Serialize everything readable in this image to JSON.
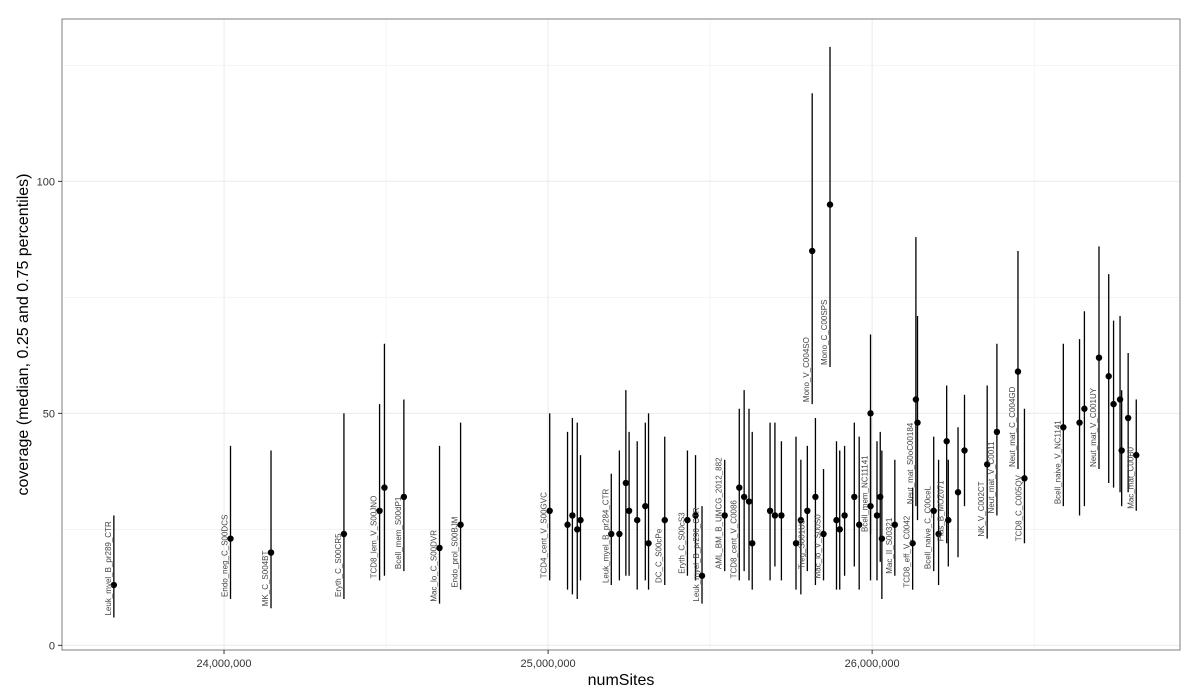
{
  "chart_data": {
    "type": "scatter",
    "subtype": "pointrange",
    "title": "",
    "xlabel": "numSites",
    "ylabel": "coverage (median, 0.25 and 0.75 percentiles)",
    "xlim": [
      23500000,
      26950000
    ],
    "ylim": [
      -1,
      135
    ],
    "x_ticks": [
      24000000,
      25000000,
      26000000
    ],
    "x_tick_labels": [
      "24,000,000",
      "25,000,000",
      "26,000,000"
    ],
    "y_ticks": [
      0,
      50,
      100
    ],
    "y_tick_labels": [
      "0",
      "50",
      "100"
    ],
    "grid": true,
    "colors": {
      "panel_border": "#7f7f7f",
      "grid": "#ebebeb",
      "point": "#000000",
      "label": "#444444"
    },
    "points": [
      {
        "label": "Leuk_myel_B_pr289_CTR",
        "x": 23660000,
        "y": 13,
        "lo": 6,
        "hi": 28
      },
      {
        "label": "Endo_neg_C_S00DCS",
        "x": 24020000,
        "y": 23,
        "lo": 10,
        "hi": 43
      },
      {
        "label": "MK_C_S004BT",
        "x": 24145000,
        "y": 20,
        "lo": 8,
        "hi": 42
      },
      {
        "label": "Eryth_C_S00CR5",
        "x": 24370000,
        "y": 24,
        "lo": 10,
        "hi": 50
      },
      {
        "label": "TCD8_lem_V_S00JNO",
        "x": 24480000,
        "y": 29,
        "lo": 14,
        "hi": 52
      },
      {
        "label": "",
        "x": 24495000,
        "y": 34,
        "lo": 15,
        "hi": 65
      },
      {
        "label": "Bcell_mem_S00dP1",
        "x": 24555000,
        "y": 32,
        "lo": 16,
        "hi": 53
      },
      {
        "label": "Mac_lo_C_S00DVR",
        "x": 24665000,
        "y": 21,
        "lo": 9,
        "hi": 43
      },
      {
        "label": "Endo_prol_S00BJM",
        "x": 24730000,
        "y": 26,
        "lo": 12,
        "hi": 48
      },
      {
        "label": "TCD4_cent_V_S00GVC",
        "x": 25005000,
        "y": 29,
        "lo": 14,
        "hi": 50
      },
      {
        "label": "",
        "x": 25060000,
        "y": 26,
        "lo": 12,
        "hi": 46
      },
      {
        "label": "",
        "x": 25075000,
        "y": 28,
        "lo": 11,
        "hi": 49
      },
      {
        "label": "",
        "x": 25090000,
        "y": 25,
        "lo": 10,
        "hi": 48
      },
      {
        "label": "",
        "x": 25100000,
        "y": 27,
        "lo": 14,
        "hi": 41
      },
      {
        "label": "Leuk_myel_B_pr284_CTR",
        "x": 25195000,
        "y": 24,
        "lo": 13,
        "hi": 37
      },
      {
        "label": "",
        "x": 25220000,
        "y": 24,
        "lo": 14,
        "hi": 42
      },
      {
        "label": "",
        "x": 25240000,
        "y": 35,
        "lo": 15,
        "hi": 55
      },
      {
        "label": "",
        "x": 25250000,
        "y": 29,
        "lo": 15,
        "hi": 46
      },
      {
        "label": "",
        "x": 25275000,
        "y": 27,
        "lo": 12,
        "hi": 44
      },
      {
        "label": "",
        "x": 25300000,
        "y": 30,
        "lo": 14,
        "hi": 48
      },
      {
        "label": "",
        "x": 25310000,
        "y": 22,
        "lo": 12,
        "hi": 50
      },
      {
        "label": "DC_C_S00cPe",
        "x": 25360000,
        "y": 27,
        "lo": 13,
        "hi": 45
      },
      {
        "label": "Eryth_C_S00cS3",
        "x": 25430000,
        "y": 27,
        "lo": 15,
        "hi": 42
      },
      {
        "label": "",
        "x": 25455000,
        "y": 28,
        "lo": 14,
        "hi": 41
      },
      {
        "label": "Leuk_myel_B_pr290_CTR",
        "x": 25475000,
        "y": 15,
        "lo": 9,
        "hi": 30
      },
      {
        "label": "AML_BM_B_UMCG_2012_882",
        "x": 25545000,
        "y": 28,
        "lo": 16,
        "hi": 40
      },
      {
        "label": "TCD8_cent_V_C0086",
        "x": 25590000,
        "y": 34,
        "lo": 14,
        "hi": 51
      },
      {
        "label": "",
        "x": 25605000,
        "y": 32,
        "lo": 16,
        "hi": 55
      },
      {
        "label": "",
        "x": 25620000,
        "y": 31,
        "lo": 14,
        "hi": 51
      },
      {
        "label": "",
        "x": 25630000,
        "y": 22,
        "lo": 12,
        "hi": 46
      },
      {
        "label": "",
        "x": 25685000,
        "y": 29,
        "lo": 14,
        "hi": 48
      },
      {
        "label": "",
        "x": 25700000,
        "y": 28,
        "lo": 17,
        "hi": 48
      },
      {
        "label": "",
        "x": 25720000,
        "y": 28,
        "lo": 14,
        "hi": 44
      },
      {
        "label": "",
        "x": 25765000,
        "y": 22,
        "lo": 12,
        "hi": 45
      },
      {
        "label": "",
        "x": 25780000,
        "y": 27,
        "lo": 11,
        "hi": 40
      },
      {
        "label": "Treg_S001U3",
        "x": 25800000,
        "y": 29,
        "lo": 16,
        "hi": 43
      },
      {
        "label": "Mono_V_C004SO",
        "x": 25815000,
        "y": 85,
        "lo": 52,
        "hi": 119
      },
      {
        "label": "Mono_C_C00SPS",
        "x": 25870000,
        "y": 95,
        "lo": 60,
        "hi": 129
      },
      {
        "label": "",
        "x": 25825000,
        "y": 32,
        "lo": 13,
        "hi": 49
      },
      {
        "label": "Mac_lo_V_S00S0",
        "x": 25850000,
        "y": 24,
        "lo": 14,
        "hi": 38
      },
      {
        "label": "",
        "x": 25890000,
        "y": 27,
        "lo": 12,
        "hi": 44
      },
      {
        "label": "",
        "x": 25900000,
        "y": 25,
        "lo": 12,
        "hi": 42
      },
      {
        "label": "",
        "x": 25915000,
        "y": 28,
        "lo": 15,
        "hi": 43
      },
      {
        "label": "",
        "x": 25945000,
        "y": 32,
        "lo": 17,
        "hi": 48
      },
      {
        "label": "",
        "x": 25960000,
        "y": 26,
        "lo": 12,
        "hi": 45
      },
      {
        "label": "Bcell_mem_NC11141",
        "x": 25995000,
        "y": 50,
        "lo": 24,
        "hi": 67
      },
      {
        "label": "",
        "x": 25995000,
        "y": 30,
        "lo": 14,
        "hi": 49
      },
      {
        "label": "",
        "x": 26015000,
        "y": 28,
        "lo": 14,
        "hi": 44
      },
      {
        "label": "",
        "x": 26025000,
        "y": 32,
        "lo": 18,
        "hi": 46
      },
      {
        "label": "",
        "x": 26030000,
        "y": 23,
        "lo": 10,
        "hi": 42
      },
      {
        "label": "Mac_II_S00321",
        "x": 26070000,
        "y": 26,
        "lo": 15,
        "hi": 40
      },
      {
        "label": "Neut_mat_S0oC00184",
        "x": 26135000,
        "y": 53,
        "lo": 30,
        "hi": 88
      },
      {
        "label": "",
        "x": 26140000,
        "y": 48,
        "lo": 27,
        "hi": 71
      },
      {
        "label": "TCD8_eff_V_C0042",
        "x": 26125000,
        "y": 22,
        "lo": 12,
        "hi": 34
      },
      {
        "label": "Bcell_naive_C_C00ceL",
        "x": 26190000,
        "y": 29,
        "lo": 16,
        "hi": 45
      },
      {
        "label": "",
        "x": 26205000,
        "y": 24,
        "lo": 13,
        "hi": 40
      },
      {
        "label": "Plas_B_MOZ071",
        "x": 26230000,
        "y": 44,
        "lo": 22,
        "hi": 56
      },
      {
        "label": "",
        "x": 26235000,
        "y": 27,
        "lo": 17,
        "hi": 40
      },
      {
        "label": "",
        "x": 26265000,
        "y": 33,
        "lo": 19,
        "hi": 47
      },
      {
        "label": "",
        "x": 26285000,
        "y": 42,
        "lo": 30,
        "hi": 54
      },
      {
        "label": "NK_V_C002CT",
        "x": 26355000,
        "y": 39,
        "lo": 23,
        "hi": 56
      },
      {
        "label": "Neut_mat_V_C0011",
        "x": 26385000,
        "y": 46,
        "lo": 28,
        "hi": 65
      },
      {
        "label": "Neut_mat_C_C004GD",
        "x": 26450000,
        "y": 59,
        "lo": 38,
        "hi": 85
      },
      {
        "label": "TCD8_C_C005QV",
        "x": 26470000,
        "y": 36,
        "lo": 22,
        "hi": 51
      },
      {
        "label": "Bcell_naive_V_NC1141",
        "x": 26590000,
        "y": 47,
        "lo": 30,
        "hi": 65
      },
      {
        "label": "",
        "x": 26640000,
        "y": 48,
        "lo": 28,
        "hi": 66
      },
      {
        "label": "",
        "x": 26655000,
        "y": 51,
        "lo": 30,
        "hi": 72
      },
      {
        "label": "Neut_mat_V_C001UY",
        "x": 26700000,
        "y": 62,
        "lo": 38,
        "hi": 86
      },
      {
        "label": "",
        "x": 26730000,
        "y": 58,
        "lo": 35,
        "hi": 80
      },
      {
        "label": "",
        "x": 26745000,
        "y": 52,
        "lo": 34,
        "hi": 70
      },
      {
        "label": "",
        "x": 26765000,
        "y": 53,
        "lo": 33,
        "hi": 71
      },
      {
        "label": "",
        "x": 26770000,
        "y": 42,
        "lo": 30,
        "hi": 55
      },
      {
        "label": "",
        "x": 26790000,
        "y": 49,
        "lo": 33,
        "hi": 63
      },
      {
        "label": "Mac_mat_C00B0",
        "x": 26815000,
        "y": 41,
        "lo": 29,
        "hi": 53
      }
    ]
  }
}
